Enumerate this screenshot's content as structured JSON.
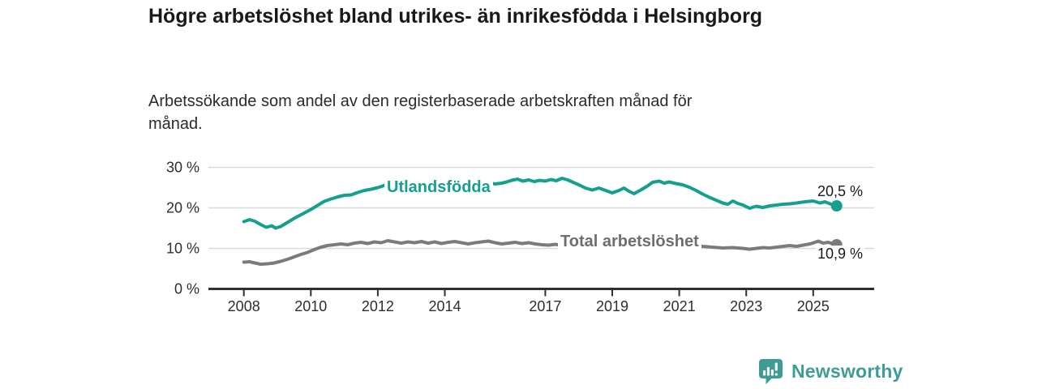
{
  "header": {
    "title": "Högre arbetslöshet bland utrikes- än inrikesfödda i Helsingborg",
    "subtitle": "Arbetssökande som andel av den registerbaserade arbetskraften månad för månad."
  },
  "chart_data": {
    "type": "line",
    "title": "Högre arbetslöshet bland utrikes- än inrikesfödda i Helsingborg",
    "subtitle": "Arbetssökande som andel av den registerbaserade arbetskraften månad för månad.",
    "xlabel": "",
    "ylabel": "",
    "unit": "%",
    "xlim": [
      2006.9,
      2026.7
    ],
    "ylim": [
      0,
      30
    ],
    "grid": "horizontal",
    "legend_position": "inline-labels",
    "y_ticks": [
      {
        "value": 0,
        "label": "0 %"
      },
      {
        "value": 10,
        "label": "10 %"
      },
      {
        "value": 20,
        "label": "20 %"
      },
      {
        "value": 30,
        "label": "30 %"
      }
    ],
    "x_ticks": [
      {
        "value": 2008,
        "label": "2008"
      },
      {
        "value": 2010,
        "label": "2010"
      },
      {
        "value": 2012,
        "label": "2012"
      },
      {
        "value": 2014,
        "label": "2014"
      },
      {
        "value": 2017,
        "label": "2017"
      },
      {
        "value": 2019,
        "label": "2019"
      },
      {
        "value": 2021,
        "label": "2021"
      },
      {
        "value": 2023,
        "label": "2023"
      },
      {
        "value": 2025,
        "label": "2025"
      }
    ],
    "series": [
      {
        "id": "utlandsfodda",
        "name": "Utlandsfödda",
        "color": "#14a08d",
        "end_label": "20,5 %",
        "end_value": 20.5,
        "points": [
          [
            2008.0,
            16.6
          ],
          [
            2008.17,
            17.1
          ],
          [
            2008.33,
            16.7
          ],
          [
            2008.5,
            15.9
          ],
          [
            2008.67,
            15.2
          ],
          [
            2008.83,
            15.6
          ],
          [
            2008.95,
            15.0
          ],
          [
            2009.1,
            15.4
          ],
          [
            2009.3,
            16.4
          ],
          [
            2009.5,
            17.4
          ],
          [
            2009.75,
            18.5
          ],
          [
            2010.0,
            19.6
          ],
          [
            2010.2,
            20.6
          ],
          [
            2010.4,
            21.6
          ],
          [
            2010.6,
            22.2
          ],
          [
            2010.8,
            22.7
          ],
          [
            2011.0,
            23.1
          ],
          [
            2011.2,
            23.2
          ],
          [
            2011.4,
            23.8
          ],
          [
            2011.6,
            24.3
          ],
          [
            2011.8,
            24.6
          ],
          [
            2012.0,
            25.0
          ],
          [
            2012.15,
            25.4
          ],
          [
            2012.3,
            25.9
          ],
          [
            2012.45,
            25.1
          ],
          [
            2012.6,
            25.6
          ],
          [
            2012.75,
            25.2
          ],
          [
            2012.9,
            24.9
          ],
          [
            2013.1,
            25.2
          ],
          [
            2013.3,
            25.5
          ],
          [
            2013.5,
            25.2
          ],
          [
            2013.7,
            25.5
          ],
          [
            2013.9,
            25.3
          ],
          [
            2014.1,
            25.5
          ],
          [
            2014.3,
            25.8
          ],
          [
            2014.5,
            25.6
          ],
          [
            2014.7,
            25.9
          ],
          [
            2014.9,
            26.1
          ],
          [
            2015.1,
            26.6
          ],
          [
            2015.3,
            26.2
          ],
          [
            2015.5,
            25.9
          ],
          [
            2015.7,
            26.1
          ],
          [
            2015.85,
            26.4
          ],
          [
            2016.0,
            26.8
          ],
          [
            2016.17,
            27.1
          ],
          [
            2016.33,
            26.6
          ],
          [
            2016.5,
            26.9
          ],
          [
            2016.67,
            26.5
          ],
          [
            2016.83,
            26.8
          ],
          [
            2017.0,
            26.6
          ],
          [
            2017.17,
            27.0
          ],
          [
            2017.33,
            26.7
          ],
          [
            2017.5,
            27.3
          ],
          [
            2017.67,
            26.9
          ],
          [
            2017.83,
            26.3
          ],
          [
            2018.0,
            25.7
          ],
          [
            2018.2,
            24.9
          ],
          [
            2018.4,
            24.4
          ],
          [
            2018.6,
            24.9
          ],
          [
            2018.8,
            24.3
          ],
          [
            2019.0,
            23.7
          ],
          [
            2019.2,
            24.3
          ],
          [
            2019.35,
            24.9
          ],
          [
            2019.5,
            24.1
          ],
          [
            2019.65,
            23.5
          ],
          [
            2019.85,
            24.4
          ],
          [
            2020.05,
            25.4
          ],
          [
            2020.2,
            26.3
          ],
          [
            2020.4,
            26.6
          ],
          [
            2020.55,
            26.1
          ],
          [
            2020.7,
            26.4
          ],
          [
            2020.9,
            26.0
          ],
          [
            2021.1,
            25.7
          ],
          [
            2021.3,
            25.1
          ],
          [
            2021.5,
            24.3
          ],
          [
            2021.7,
            23.4
          ],
          [
            2021.9,
            22.6
          ],
          [
            2022.1,
            21.9
          ],
          [
            2022.3,
            21.2
          ],
          [
            2022.45,
            20.9
          ],
          [
            2022.6,
            21.7
          ],
          [
            2022.75,
            21.1
          ],
          [
            2022.9,
            20.7
          ],
          [
            2023.1,
            19.9
          ],
          [
            2023.3,
            20.4
          ],
          [
            2023.5,
            20.1
          ],
          [
            2023.7,
            20.5
          ],
          [
            2023.9,
            20.7
          ],
          [
            2024.1,
            20.9
          ],
          [
            2024.3,
            21.0
          ],
          [
            2024.5,
            21.2
          ],
          [
            2024.75,
            21.5
          ],
          [
            2025.0,
            21.7
          ],
          [
            2025.2,
            21.2
          ],
          [
            2025.35,
            21.5
          ],
          [
            2025.5,
            21.0
          ],
          [
            2025.7,
            20.5
          ]
        ]
      },
      {
        "id": "total",
        "name": "Total arbetslöshet",
        "color": "#7a7a7f",
        "end_label": "10,9 %",
        "end_value": 10.9,
        "points": [
          [
            2008.0,
            6.6
          ],
          [
            2008.17,
            6.7
          ],
          [
            2008.33,
            6.4
          ],
          [
            2008.5,
            6.1
          ],
          [
            2008.7,
            6.2
          ],
          [
            2008.9,
            6.4
          ],
          [
            2009.1,
            6.8
          ],
          [
            2009.3,
            7.3
          ],
          [
            2009.5,
            7.9
          ],
          [
            2009.7,
            8.5
          ],
          [
            2009.9,
            9.0
          ],
          [
            2010.1,
            9.7
          ],
          [
            2010.3,
            10.3
          ],
          [
            2010.5,
            10.7
          ],
          [
            2010.7,
            10.9
          ],
          [
            2010.9,
            11.1
          ],
          [
            2011.1,
            10.9
          ],
          [
            2011.3,
            11.3
          ],
          [
            2011.5,
            11.5
          ],
          [
            2011.7,
            11.2
          ],
          [
            2011.9,
            11.6
          ],
          [
            2012.1,
            11.4
          ],
          [
            2012.3,
            11.9
          ],
          [
            2012.5,
            11.6
          ],
          [
            2012.7,
            11.3
          ],
          [
            2012.9,
            11.6
          ],
          [
            2013.1,
            11.4
          ],
          [
            2013.3,
            11.7
          ],
          [
            2013.5,
            11.3
          ],
          [
            2013.7,
            11.6
          ],
          [
            2013.9,
            11.2
          ],
          [
            2014.1,
            11.5
          ],
          [
            2014.3,
            11.7
          ],
          [
            2014.5,
            11.4
          ],
          [
            2014.7,
            11.1
          ],
          [
            2014.9,
            11.4
          ],
          [
            2015.1,
            11.6
          ],
          [
            2015.3,
            11.8
          ],
          [
            2015.5,
            11.4
          ],
          [
            2015.7,
            11.1
          ],
          [
            2015.9,
            11.3
          ],
          [
            2016.1,
            11.5
          ],
          [
            2016.3,
            11.2
          ],
          [
            2016.5,
            11.4
          ],
          [
            2016.7,
            11.1
          ],
          [
            2016.9,
            10.9
          ],
          [
            2017.1,
            10.8
          ],
          [
            2017.3,
            11.0
          ],
          [
            2017.5,
            10.7
          ],
          [
            2017.75,
            10.5
          ],
          [
            2018.0,
            10.4
          ],
          [
            2018.3,
            10.6
          ],
          [
            2018.6,
            10.3
          ],
          [
            2019.0,
            10.5
          ],
          [
            2019.3,
            10.7
          ],
          [
            2019.6,
            10.4
          ],
          [
            2019.9,
            10.8
          ],
          [
            2020.2,
            11.7
          ],
          [
            2020.5,
            11.5
          ],
          [
            2020.8,
            11.3
          ],
          [
            2021.1,
            11.1
          ],
          [
            2021.4,
            10.8
          ],
          [
            2021.7,
            10.5
          ],
          [
            2022.0,
            10.3
          ],
          [
            2022.3,
            10.1
          ],
          [
            2022.6,
            10.2
          ],
          [
            2022.9,
            10.0
          ],
          [
            2023.1,
            9.8
          ],
          [
            2023.3,
            10.0
          ],
          [
            2023.5,
            10.2
          ],
          [
            2023.7,
            10.1
          ],
          [
            2023.9,
            10.3
          ],
          [
            2024.1,
            10.5
          ],
          [
            2024.3,
            10.7
          ],
          [
            2024.5,
            10.5
          ],
          [
            2024.7,
            10.8
          ],
          [
            2024.9,
            11.1
          ],
          [
            2025.05,
            11.5
          ],
          [
            2025.15,
            11.8
          ],
          [
            2025.3,
            11.3
          ],
          [
            2025.45,
            11.5
          ],
          [
            2025.6,
            11.1
          ],
          [
            2025.7,
            10.9
          ]
        ]
      }
    ],
    "colors": {
      "accent_teal": "#14a08d",
      "line_gray": "#7a7a7f",
      "gridline": "#d9d9d9",
      "axis": "#2f2f2f",
      "text": "#2e2e2e"
    }
  },
  "footer": {
    "brand": "Newsworthy",
    "brand_color": "#3f9c95",
    "logo_icon": "speech-bubble-bar-chart-icon"
  }
}
